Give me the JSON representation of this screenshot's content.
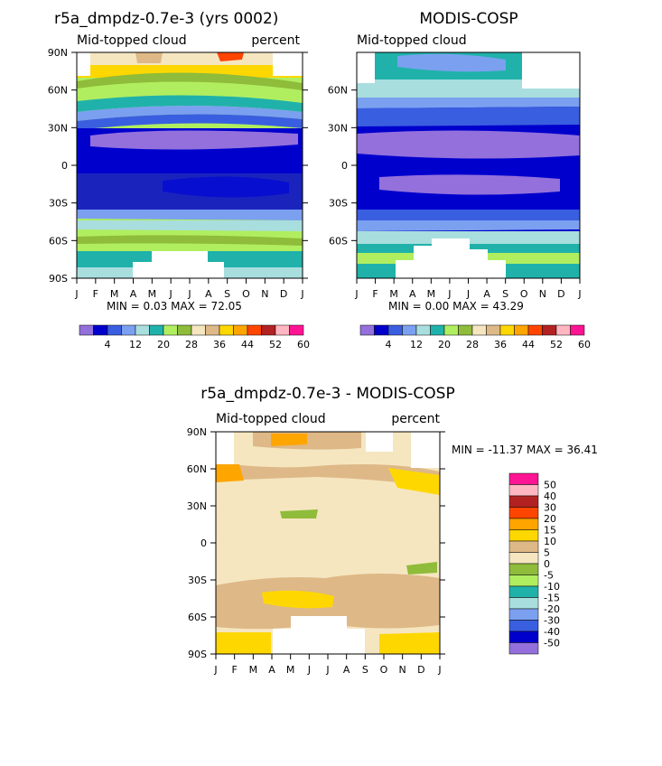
{
  "chart_data": [
    {
      "type": "heatmap",
      "title": "r5a_dmpdz-0.7e-3 (yrs 0002)",
      "subtitle": "Mid-topped cloud",
      "units": "percent",
      "min_max_label": "MIN =    0.03 MAX =   72.05",
      "x_ticks": [
        "J",
        "F",
        "M",
        "A",
        "M",
        "J",
        "J",
        "A",
        "S",
        "O",
        "N",
        "D",
        "J"
      ],
      "y_ticks": [
        "90N",
        "60N",
        "30N",
        "0",
        "30S",
        "60S",
        "90S"
      ],
      "y_range": [
        -90,
        90
      ],
      "colorbar_labels": [
        "4",
        "12",
        "20",
        "28",
        "36",
        "44",
        "52",
        "60"
      ],
      "colorbar_colors": [
        "#9370db",
        "#0000cd",
        "#3a5ee0",
        "#7ba0f0",
        "#a8dede",
        "#20b2aa",
        "#b0ee60",
        "#8fbc3a",
        "#f5e6c0",
        "#deb887",
        "#ffd700",
        "#ffa500",
        "#ff4500",
        "#b22222",
        "#ffb6c1",
        "#ff1493"
      ]
    },
    {
      "type": "heatmap",
      "title": "MODIS-COSP",
      "subtitle": "Mid-topped cloud",
      "min_max_label": "MIN =    0.00 MAX =   43.29",
      "x_ticks": [
        "J",
        "F",
        "M",
        "A",
        "M",
        "J",
        "J",
        "A",
        "S",
        "O",
        "N",
        "D",
        "J"
      ],
      "y_ticks": [
        "60N",
        "30N",
        "0",
        "30S",
        "60S"
      ],
      "y_range": [
        -90,
        90
      ],
      "colorbar_labels": [
        "4",
        "12",
        "20",
        "28",
        "36",
        "44",
        "52",
        "60"
      ],
      "colorbar_colors": [
        "#9370db",
        "#0000cd",
        "#3a5ee0",
        "#7ba0f0",
        "#a8dede",
        "#20b2aa",
        "#b0ee60",
        "#8fbc3a",
        "#f5e6c0",
        "#deb887",
        "#ffd700",
        "#ffa500",
        "#ff4500",
        "#b22222",
        "#ffb6c1",
        "#ff1493"
      ]
    },
    {
      "type": "heatmap",
      "title": "r5a_dmpdz-0.7e-3 - MODIS-COSP",
      "subtitle": "Mid-topped cloud",
      "units": "percent",
      "min_max_label": "MIN = -11.37 MAX =   36.41",
      "x_ticks": [
        "J",
        "F",
        "M",
        "A",
        "M",
        "J",
        "J",
        "A",
        "S",
        "O",
        "N",
        "D",
        "J"
      ],
      "y_ticks": [
        "90N",
        "60N",
        "30N",
        "0",
        "30S",
        "60S",
        "90S"
      ],
      "y_range": [
        -90,
        90
      ],
      "colorbar_labels": [
        "50",
        "40",
        "30",
        "20",
        "15",
        "10",
        "5",
        "0",
        "-5",
        "-10",
        "-15",
        "-20",
        "-30",
        "-40",
        "-50"
      ],
      "colorbar_colors": [
        "#ff1493",
        "#ffb6c1",
        "#b22222",
        "#ff4500",
        "#ffa500",
        "#ffd700",
        "#deb887",
        "#f5e6c0",
        "#8fbc3a",
        "#b0ee60",
        "#20b2aa",
        "#a8dede",
        "#7ba0f0",
        "#3a5ee0",
        "#0000cd",
        "#9370db"
      ]
    }
  ]
}
